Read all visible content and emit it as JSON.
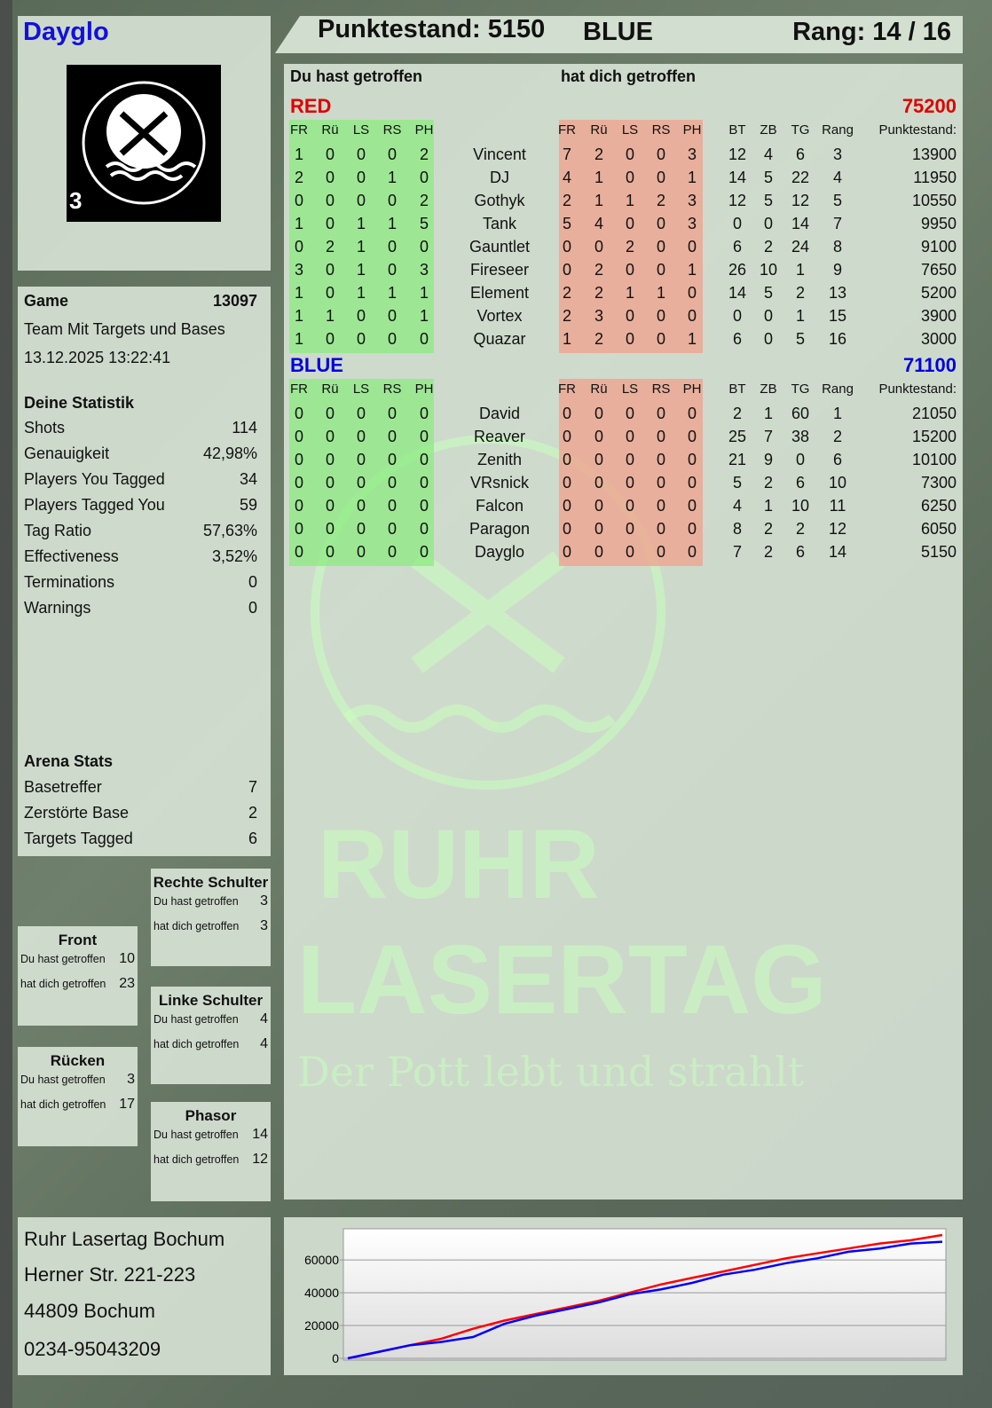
{
  "player": {
    "name": "Dayglo",
    "logo_badge": "3",
    "logo_text": "RUHR LASERTAG"
  },
  "header": {
    "score_label": "Punktestand: 5150",
    "team": "BLUE",
    "rank_label": "Rang: 14 / 16"
  },
  "main": {
    "you_hit_label": "Du hast getroffen",
    "hit_you_label": "hat dich getroffen",
    "columns_you": [
      "FR",
      "Rü",
      "LS",
      "RS",
      "PH"
    ],
    "columns_them": [
      "FR",
      "Rü",
      "LS",
      "RS",
      "PH"
    ],
    "columns_stats": [
      "BT",
      "ZB",
      "TG",
      "Rang",
      "Punktestand:"
    ],
    "teams": [
      {
        "name": "RED",
        "score": "75200",
        "color": "#e00000",
        "players": [
          {
            "you": [
              1,
              0,
              0,
              0,
              2
            ],
            "name": "Vincent",
            "them": [
              7,
              2,
              0,
              0,
              3
            ],
            "stats": [
              12,
              4,
              6,
              3,
              13900
            ]
          },
          {
            "you": [
              2,
              0,
              0,
              1,
              0
            ],
            "name": "DJ",
            "them": [
              4,
              1,
              0,
              0,
              1
            ],
            "stats": [
              14,
              5,
              22,
              4,
              11950
            ]
          },
          {
            "you": [
              0,
              0,
              0,
              0,
              2
            ],
            "name": "Gothyk",
            "them": [
              2,
              1,
              1,
              2,
              3
            ],
            "stats": [
              12,
              5,
              12,
              5,
              10550
            ]
          },
          {
            "you": [
              1,
              0,
              1,
              1,
              5
            ],
            "name": "Tank",
            "them": [
              5,
              4,
              0,
              0,
              3
            ],
            "stats": [
              0,
              0,
              14,
              7,
              9950
            ]
          },
          {
            "you": [
              0,
              2,
              1,
              0,
              0
            ],
            "name": "Gauntlet",
            "them": [
              0,
              0,
              2,
              0,
              0
            ],
            "stats": [
              6,
              2,
              24,
              8,
              9100
            ]
          },
          {
            "you": [
              3,
              0,
              1,
              0,
              3
            ],
            "name": "Fireseer",
            "them": [
              0,
              2,
              0,
              0,
              1
            ],
            "stats": [
              26,
              10,
              1,
              9,
              7650
            ]
          },
          {
            "you": [
              1,
              0,
              1,
              1,
              1
            ],
            "name": "Element",
            "them": [
              2,
              2,
              1,
              1,
              0
            ],
            "stats": [
              14,
              5,
              2,
              13,
              5200
            ]
          },
          {
            "you": [
              1,
              1,
              0,
              0,
              1
            ],
            "name": "Vortex",
            "them": [
              2,
              3,
              0,
              0,
              0
            ],
            "stats": [
              0,
              0,
              1,
              15,
              3900
            ]
          },
          {
            "you": [
              1,
              0,
              0,
              0,
              0
            ],
            "name": "Quazar",
            "them": [
              1,
              2,
              0,
              0,
              1
            ],
            "stats": [
              6,
              0,
              5,
              16,
              3000
            ]
          }
        ]
      },
      {
        "name": "BLUE",
        "score": "71100",
        "color": "#0000e0",
        "players": [
          {
            "you": [
              0,
              0,
              0,
              0,
              0
            ],
            "name": "David",
            "them": [
              0,
              0,
              0,
              0,
              0
            ],
            "stats": [
              2,
              1,
              60,
              1,
              21050
            ]
          },
          {
            "you": [
              0,
              0,
              0,
              0,
              0
            ],
            "name": "Reaver",
            "them": [
              0,
              0,
              0,
              0,
              0
            ],
            "stats": [
              25,
              7,
              38,
              2,
              15200
            ]
          },
          {
            "you": [
              0,
              0,
              0,
              0,
              0
            ],
            "name": "Zenith",
            "them": [
              0,
              0,
              0,
              0,
              0
            ],
            "stats": [
              21,
              9,
              0,
              6,
              10100
            ]
          },
          {
            "you": [
              0,
              0,
              0,
              0,
              0
            ],
            "name": "VRsnick",
            "them": [
              0,
              0,
              0,
              0,
              0
            ],
            "stats": [
              5,
              2,
              6,
              10,
              7300
            ]
          },
          {
            "you": [
              0,
              0,
              0,
              0,
              0
            ],
            "name": "Falcon",
            "them": [
              0,
              0,
              0,
              0,
              0
            ],
            "stats": [
              4,
              1,
              10,
              11,
              6250
            ]
          },
          {
            "you": [
              0,
              0,
              0,
              0,
              0
            ],
            "name": "Paragon",
            "them": [
              0,
              0,
              0,
              0,
              0
            ],
            "stats": [
              8,
              2,
              2,
              12,
              6050
            ]
          },
          {
            "you": [
              0,
              0,
              0,
              0,
              0
            ],
            "name": "Dayglo",
            "them": [
              0,
              0,
              0,
              0,
              0
            ],
            "stats": [
              7,
              2,
              6,
              14,
              5150
            ]
          }
        ]
      }
    ]
  },
  "game": {
    "label": "Game",
    "id": "13097",
    "mode": "Team Mit Targets und Bases",
    "datetime": "13.12.2025 13:22:41"
  },
  "stats": {
    "title": "Deine Statistik",
    "items": [
      {
        "label": "Shots",
        "value": "114"
      },
      {
        "label": "Genauigkeit",
        "value": "42,98%"
      },
      {
        "label": "Players You Tagged",
        "value": "34"
      },
      {
        "label": "Players Tagged You",
        "value": "59"
      },
      {
        "label": "Tag Ratio",
        "value": "57,63%"
      },
      {
        "label": "Effectiveness",
        "value": "3,52%"
      },
      {
        "label": "Terminations",
        "value": "0"
      },
      {
        "label": "Warnings",
        "value": "0"
      }
    ]
  },
  "arena": {
    "title": "Arena Stats",
    "items": [
      {
        "label": "Basetreffer",
        "value": "7"
      },
      {
        "label": "Zerstörte Base",
        "value": "2"
      },
      {
        "label": "Targets Tagged",
        "value": "6"
      }
    ]
  },
  "zones": {
    "you_hit": "Du hast getroffen",
    "hit_you": "hat dich getroffen",
    "front": {
      "title": "Front",
      "you": "10",
      "them": "23"
    },
    "back": {
      "title": "Rücken",
      "you": "3",
      "them": "17"
    },
    "right": {
      "title": "Rechte Schulter",
      "you": "3",
      "them": "3"
    },
    "left": {
      "title": "Linke Schulter",
      "you": "4",
      "them": "4"
    },
    "phasor": {
      "title": "Phasor",
      "you": "14",
      "them": "12"
    }
  },
  "address": {
    "line1": "Ruhr Lasertag Bochum",
    "line2": "Herner Str. 221-223",
    "line3": "44809 Bochum",
    "line4": "0234-95043209"
  },
  "watermark": {
    "line1": "RUHR",
    "line2": "LASERTAG",
    "slogan": "Der Pott lebt und strahlt"
  },
  "chart_data": {
    "type": "line",
    "ylim": [
      0,
      79000
    ],
    "yticks": [
      0,
      20000,
      40000,
      60000
    ],
    "grid": true,
    "series": [
      {
        "color": "#ff0000",
        "values": [
          0,
          4000,
          8000,
          12000,
          18000,
          23000,
          27000,
          31000,
          35000,
          40000,
          45000,
          49000,
          53000,
          57000,
          61000,
          64000,
          67000,
          70000,
          72000,
          75200
        ]
      },
      {
        "color": "#0000ff",
        "values": [
          0,
          4000,
          8000,
          10000,
          13000,
          21000,
          26000,
          30000,
          34000,
          39000,
          42000,
          46000,
          51000,
          54000,
          58000,
          61000,
          65000,
          67000,
          70000,
          71100
        ]
      }
    ]
  }
}
